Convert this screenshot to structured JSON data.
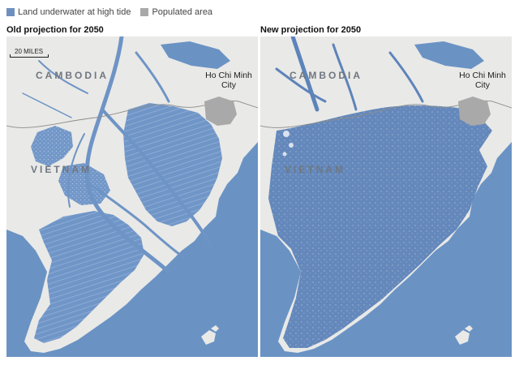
{
  "legend": {
    "underwater_label": "Land underwater at high tide",
    "populated_label": "Populated area",
    "underwater_color": "#6e8fbe",
    "populated_color": "#a9a9a9"
  },
  "colors": {
    "sea": "#6a93c4",
    "land": "#e9e9e7",
    "flood": "#7096c8",
    "flood_dense": "#6488bb",
    "city": "#a9a9a9"
  },
  "maps": {
    "left": {
      "title": "Old projection for 2050",
      "scale": "20 MILES",
      "country_north": "CAMBODIA",
      "country_south": "VIETNAM",
      "city": "Ho Chi Minh City"
    },
    "right": {
      "title": "New projection for 2050",
      "country_north": "CAMBODIA",
      "country_south": "VIETNAM",
      "city": "Ho Chi Minh City"
    }
  }
}
